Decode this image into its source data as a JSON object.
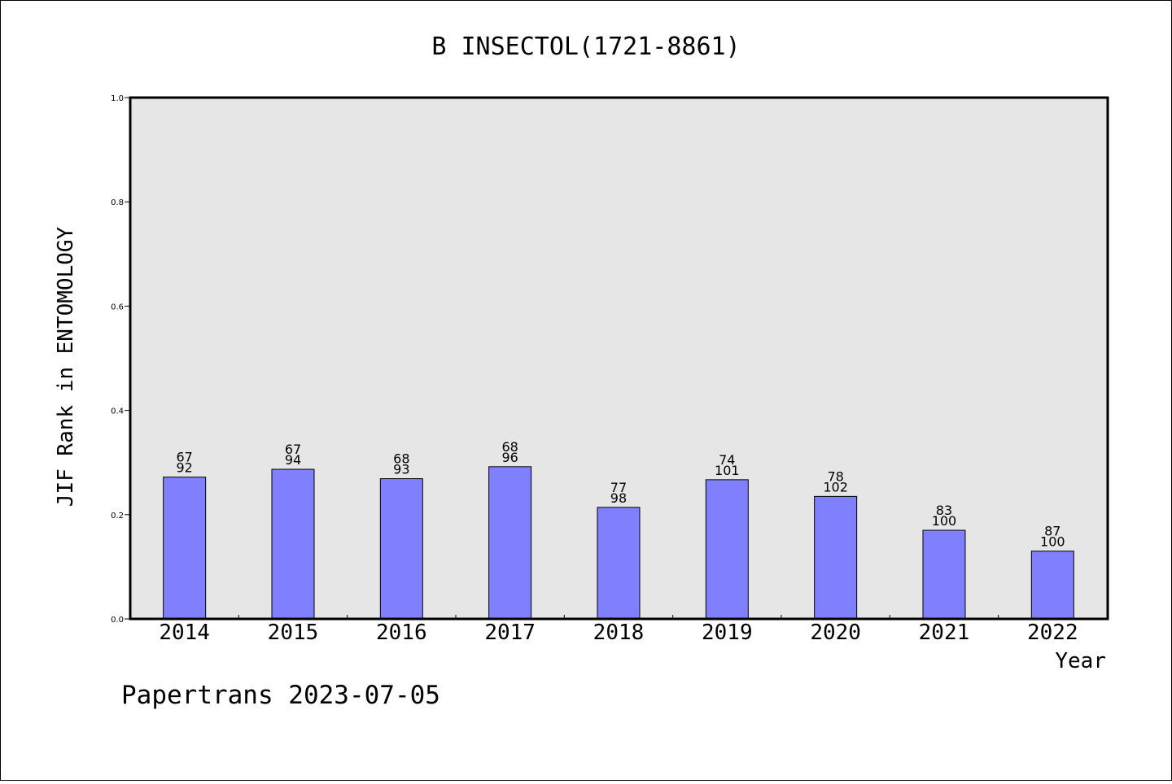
{
  "chart_data": {
    "type": "bar",
    "title": "B INSECTOL(1721-8861)",
    "xlabel": "Year",
    "ylabel": "JIF Rank in ENTOMOLOGY",
    "ylim": [
      0,
      1.0
    ],
    "yticks": [
      "0.0",
      "0.2",
      "0.4",
      "0.6",
      "0.8",
      "1.0"
    ],
    "categories": [
      "2014",
      "2015",
      "2016",
      "2017",
      "2018",
      "2019",
      "2020",
      "2021",
      "2022"
    ],
    "values": [
      0.272,
      0.287,
      0.269,
      0.292,
      0.214,
      0.267,
      0.235,
      0.17,
      0.13
    ],
    "rank_labels": [
      "67",
      "67",
      "68",
      "68",
      "77",
      "74",
      "78",
      "83",
      "87"
    ],
    "total_labels": [
      "92",
      "94",
      "93",
      "96",
      "98",
      "101",
      "102",
      "100",
      "100"
    ],
    "bar_color": "#8080ff",
    "plot_background": "#e6e6e6",
    "grid": false
  },
  "footer": {
    "text": "Papertrans 2023-07-05"
  }
}
